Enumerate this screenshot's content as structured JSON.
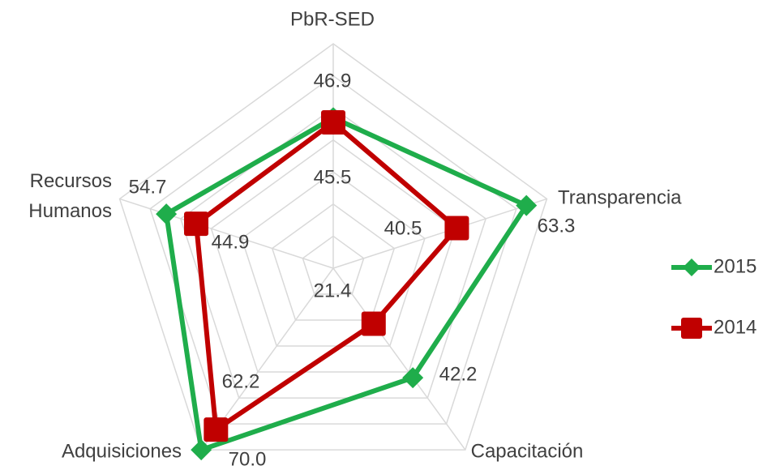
{
  "chart_data": {
    "type": "radar",
    "categories": [
      "PbR-SED",
      "Transparencia",
      "Capacitación",
      "Adquisiciones",
      "Recursos Humanos"
    ],
    "series": [
      {
        "name": "2015",
        "color": "#1fad4b",
        "marker": "diamond",
        "values": [
          46.9,
          63.3,
          42.2,
          70.0,
          54.7
        ],
        "value_labels": [
          "46.9",
          "63.3",
          "42.2",
          "70.0",
          "54.7"
        ]
      },
      {
        "name": "2014",
        "color": "#c00000",
        "marker": "square",
        "values": [
          45.5,
          40.5,
          21.4,
          62.2,
          44.9
        ],
        "value_labels": [
          "45.5",
          "40.5",
          "21.4",
          "62.2",
          "44.9"
        ]
      }
    ],
    "rlim": [
      0,
      70
    ],
    "rticks": [
      0,
      10,
      20,
      30,
      40,
      50,
      60,
      70
    ],
    "grid": true,
    "legend": "right"
  }
}
